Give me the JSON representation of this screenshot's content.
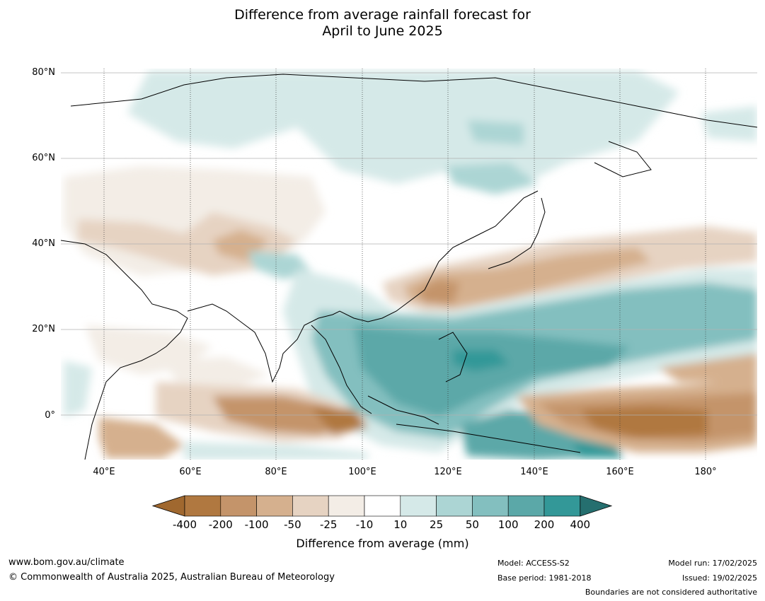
{
  "title_line1": "Difference from average rainfall forecast for",
  "title_line2": "April to June 2025",
  "lat_labels": [
    "80°N",
    "60°N",
    "40°N",
    "20°N",
    "0°"
  ],
  "lon_labels": [
    "40°E",
    "60°E",
    "80°E",
    "100°E",
    "120°E",
    "140°E",
    "160°E",
    "180°"
  ],
  "colorbar": {
    "ticks": [
      "-400",
      "-200",
      "-100",
      "-50",
      "-25",
      "-10",
      "10",
      "25",
      "50",
      "100",
      "200",
      "400"
    ],
    "colors": [
      "#a0682f",
      "#b07840",
      "#c4946a",
      "#d5b08e",
      "#e6d3c2",
      "#f3ede6",
      "#ffffff",
      "#d5e9e8",
      "#acd5d4",
      "#83bfbf",
      "#5ba8a8",
      "#339898",
      "#256f6f"
    ],
    "title": "Difference from average (mm)"
  },
  "footer": {
    "website": "www.bom.gov.au/climate",
    "copyright": "© Commonwealth of Australia 2025, Australian Bureau of Meteorology",
    "model": "Model: ACCESS-S2",
    "base_period": "Base period: 1981-2018",
    "model_run": "Model run: 17/02/2025",
    "issued": "Issued: 19/02/2025",
    "disclaimer": "Boundaries are not considered authoritative"
  }
}
